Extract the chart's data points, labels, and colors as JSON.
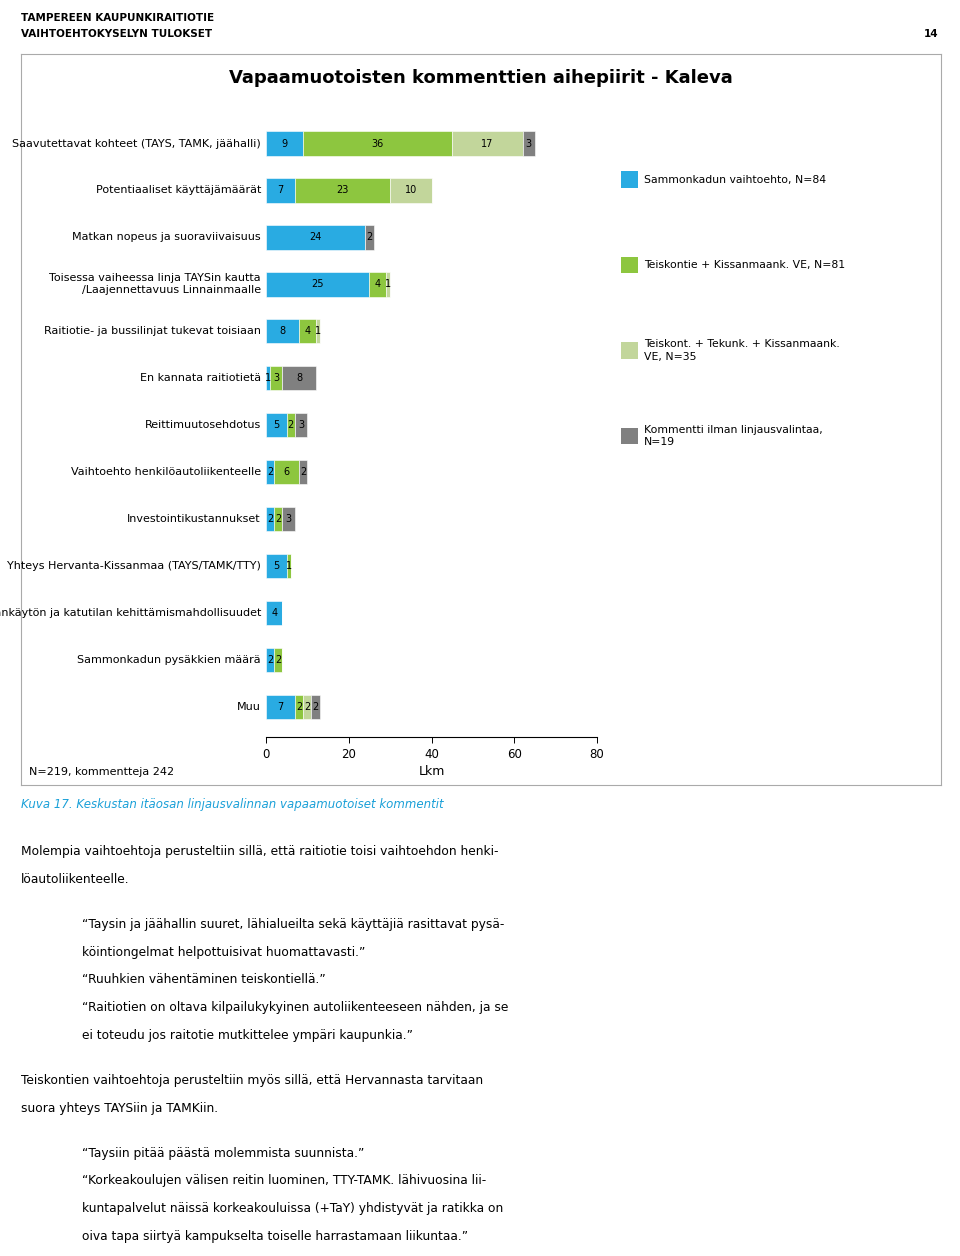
{
  "title": "Vapaamuotoisten kommenttien aihepiirit - Kaleva",
  "header1": "TAMPEREEN KAUPUNKIRAITIOTIE",
  "header2": "VAIHTOEHTOKYSELYN TULOKSET",
  "header_page": "14",
  "categories": [
    "Saavutettavat kohteet (TAYS, TAMK, jäähalli)",
    "Potentiaaliset käyttäjämäärät",
    "Matkan nopeus ja suoraviivaisuus",
    "Toisessa vaiheessa linja TAYSin kautta\n/Laajennettavuus Linnainmaalle",
    "Raitiotie- ja bussilinjat tukevat toisiaan",
    "En kannata raitiotietä",
    "Reittimuutosehdotus",
    "Vaihtoehto henkilöautoliikenteelle",
    "Investointikustannukset",
    "Yhteys Hervanta-Kissanmaa (TAYS/TAMK/TTY)",
    "Maankäytön ja katutilan kehittämismahdollisuudet",
    "Sammonkadun pysäkkien määrä",
    "Muu"
  ],
  "series": {
    "sammonkatu": [
      9,
      7,
      24,
      25,
      8,
      1,
      5,
      2,
      2,
      5,
      4,
      2,
      7
    ],
    "teiskontie": [
      36,
      23,
      0,
      4,
      4,
      3,
      2,
      6,
      2,
      1,
      0,
      2,
      2
    ],
    "teiskont_tekunk": [
      17,
      10,
      0,
      1,
      1,
      0,
      0,
      0,
      0,
      0,
      0,
      0,
      2
    ],
    "kommentti": [
      3,
      0,
      2,
      0,
      0,
      8,
      3,
      2,
      3,
      0,
      0,
      0,
      2
    ]
  },
  "colors": {
    "sammonkatu": "#29ABE2",
    "teiskontie": "#8DC63F",
    "teiskont_tekunk": "#C2D69B",
    "kommentti": "#808080"
  },
  "legend_labels": [
    "Sammonkadun vaihtoehto, N=84",
    "Teiskontie + Kissanmaank. VE, N=81",
    "Teiskont. + Tekunk. + Kissanmaank.\nVE, N=35",
    "Kommentti ilman linjausvalintaa,\nN=19"
  ],
  "xlabel": "Lkm",
  "xlim": [
    0,
    80
  ],
  "xticks": [
    0,
    20,
    40,
    60,
    80
  ],
  "footnote": "N=219, kommentteja 242",
  "caption": "Kuva 17. Keskustan itäosan linjausvalinnan vapaamuotoiset kommentit",
  "body_paragraphs": [
    {
      "lines": [
        {
          "text": "Molempia vaihtoehtoja perusteltiin sillä, että raitiotie toisi vaihtoehdon henki-",
          "bold_words": [
            "että",
            "raitiotie"
          ],
          "indent": false
        },
        {
          "text": "löautoliikenteelle.",
          "bold_words": [],
          "indent": false
        }
      ]
    },
    {
      "lines": [
        {
          "text": "“Taysin ja jäähallin suuret, lähialueilta sekä käyttäjiä rasittavat pysä-",
          "bold_words": [],
          "indent": true
        },
        {
          "text": "köintiongelmat helpottuisivat huomattavasti.”",
          "bold_words": [],
          "indent": true
        },
        {
          "text": "“Ruuhkien vähentäminen teiskontiellä.”",
          "bold_words": [],
          "indent": true
        },
        {
          "text": "“Raitiotien on oltava kilpailukykyinen autoliikenteeseen nähden, ja se",
          "bold_words": [],
          "indent": true
        },
        {
          "text": "ei toteudu jos raitotie mutkittelee ympäri kaupunkia.”",
          "bold_words": [],
          "indent": true
        }
      ]
    },
    {
      "lines": [
        {
          "text": "Teiskontien vaihtoehtoja perusteltiin myös sillä, että Hervannasta tarvitaan",
          "bold_words": [],
          "indent": false
        },
        {
          "text": "suora yhteys TAYSiin ja TAMKiin.",
          "bold_words": [
            "TAYSiin",
            "TAMKiin"
          ],
          "indent": false
        }
      ]
    },
    {
      "lines": [
        {
          "text": "“Taysiin pitää päästä molemmista suunnista.”",
          "bold_words": [],
          "indent": true
        },
        {
          "text": "“Korkeakoulujen välisen reitin luominen, TTY-TAMK. lähivuosina lii-",
          "bold_words": [],
          "indent": true
        },
        {
          "text": "kuntapalvelut näissä korkeakouluissa (+TaY) yhdistyvät ja ratikka on",
          "bold_words": [],
          "indent": true
        },
        {
          "text": "oiva tapa siirtyä kampukselta toiselle harrastamaan liikuntaa.”",
          "bold_words": [],
          "indent": true
        }
      ]
    }
  ]
}
